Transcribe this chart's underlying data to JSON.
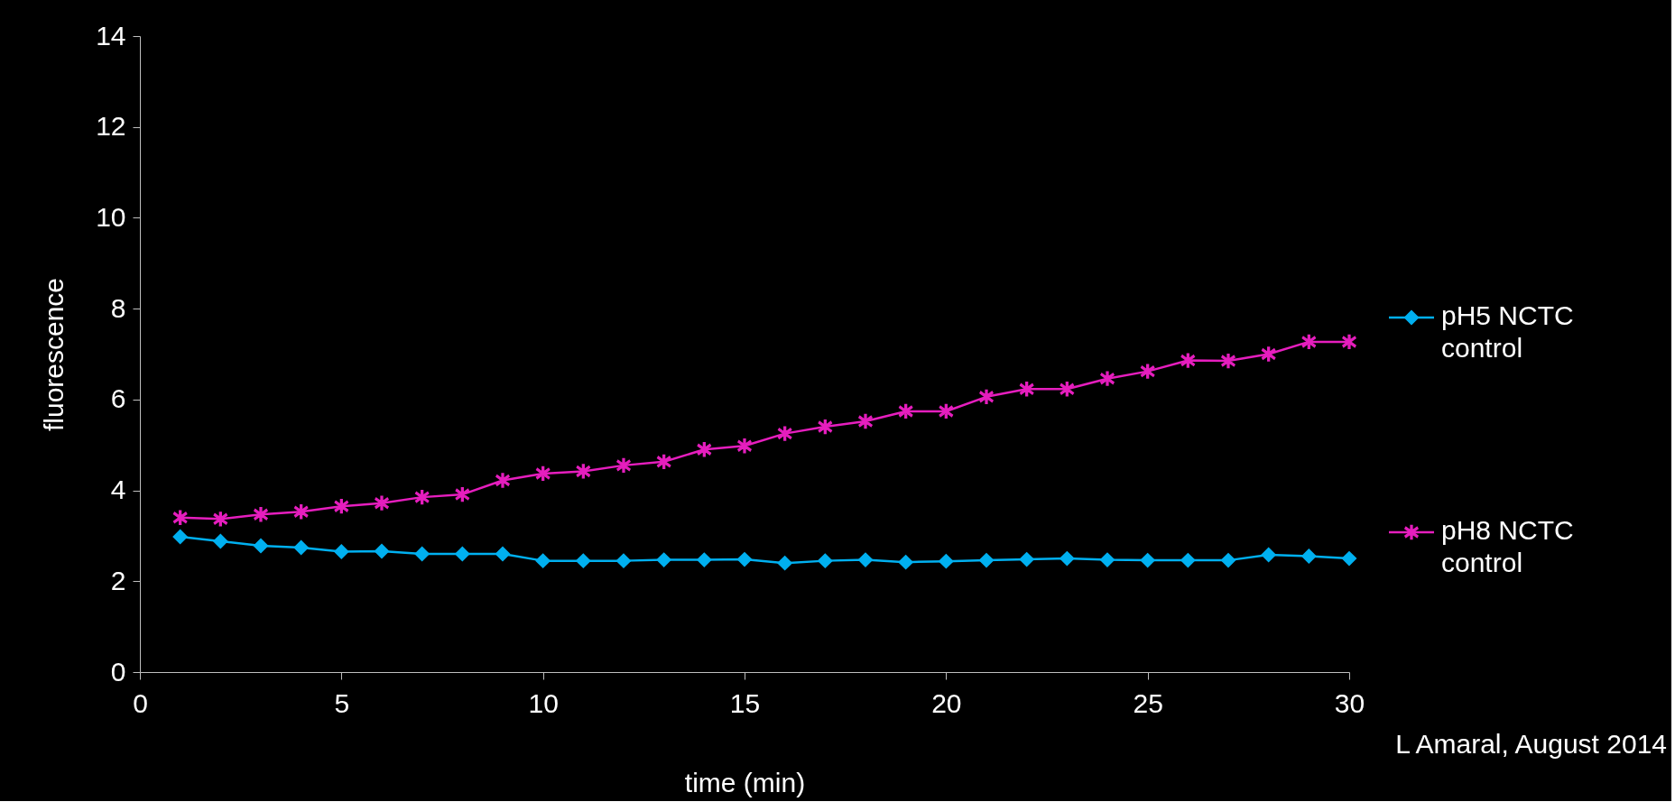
{
  "chart_data": {
    "type": "line",
    "xlabel": "time (min)",
    "ylabel": "fluorescence",
    "x": [
      1,
      2,
      3,
      4,
      5,
      6,
      7,
      8,
      9,
      10,
      11,
      12,
      13,
      14,
      15,
      16,
      17,
      18,
      19,
      20,
      21,
      22,
      23,
      24,
      25,
      26,
      27,
      28,
      29,
      30
    ],
    "series": [
      {
        "name": "pH5 NCTC control",
        "color": "#00b0f0",
        "marker": "diamond",
        "values": [
          2.98,
          2.88,
          2.78,
          2.74,
          2.65,
          2.66,
          2.6,
          2.6,
          2.6,
          2.45,
          2.45,
          2.45,
          2.47,
          2.47,
          2.48,
          2.4,
          2.45,
          2.47,
          2.42,
          2.44,
          2.46,
          2.48,
          2.5,
          2.47,
          2.46,
          2.46,
          2.46,
          2.58,
          2.55,
          2.5
        ]
      },
      {
        "name": "pH8 NCTC control",
        "color": "#e61ebe",
        "marker": "cross",
        "values": [
          3.4,
          3.37,
          3.47,
          3.53,
          3.65,
          3.72,
          3.85,
          3.91,
          4.22,
          4.37,
          4.42,
          4.55,
          4.63,
          4.9,
          4.98,
          5.25,
          5.4,
          5.52,
          5.74,
          5.74,
          6.06,
          6.23,
          6.23,
          6.46,
          6.62,
          6.86,
          6.85,
          7.0,
          7.27,
          7.27
        ]
      }
    ],
    "xlim": [
      0,
      30
    ],
    "xticks": [
      0,
      5,
      10,
      15,
      20,
      25,
      30
    ],
    "ylim": [
      0,
      14
    ],
    "yticks": [
      0,
      2,
      4,
      6,
      8,
      10,
      12,
      14
    ],
    "grid": false,
    "legend": "right",
    "line_style": "solid",
    "annotations": [
      "L Amaral, August 2014"
    ]
  }
}
